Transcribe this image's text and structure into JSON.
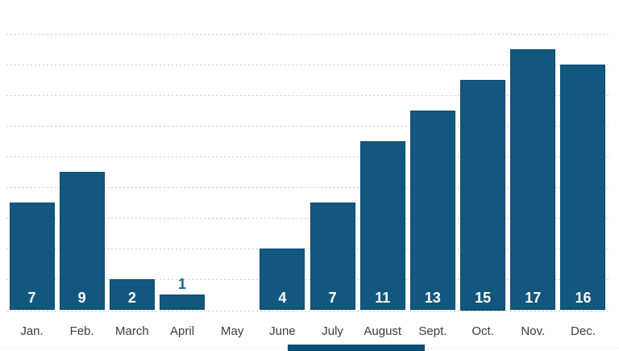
{
  "chart_data": {
    "type": "bar",
    "title": "",
    "xlabel": "",
    "ylabel": "",
    "categories": [
      "Jan.",
      "Feb.",
      "March",
      "April",
      "May",
      "June",
      "July",
      "August",
      "Sept.",
      "Oct.",
      "Nov.",
      "Dec."
    ],
    "values": [
      7,
      9,
      2,
      1,
      0,
      4,
      7,
      11,
      13,
      15,
      17,
      16
    ],
    "value_labels": [
      "7",
      "9",
      "2",
      "1",
      "",
      "4",
      "7",
      "11",
      "13",
      "15",
      "17",
      "16"
    ],
    "ylim": [
      0,
      18
    ],
    "gridline_step": 2,
    "grid": "horizontal-dashed",
    "legend": "none",
    "colors": {
      "bar": "#12577E",
      "bar_border": "#0C4A6E",
      "value_label_inside": "#FFFFFF",
      "value_label_outside": "#17649B",
      "category_label": "#3B3B3B",
      "gridline": "#CBCBCB",
      "faint_bottom_line": "#E4E4E4",
      "cropped_footer_element": "#0D4E77"
    }
  }
}
